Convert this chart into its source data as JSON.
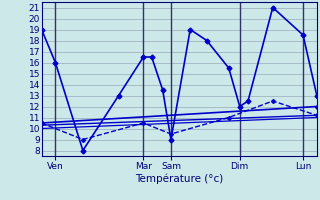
{
  "xlabel": "Température (°c)",
  "background_color": "#cce8e8",
  "grid_color": "#99aabb",
  "line_color": "#0000cc",
  "dark_line_color": "#000088",
  "yticks": [
    8,
    9,
    10,
    11,
    12,
    13,
    14,
    15,
    16,
    17,
    18,
    19,
    20,
    21
  ],
  "ylim": [
    7.5,
    21.5
  ],
  "xlim": [
    0,
    100
  ],
  "xtick_positions": [
    5,
    37,
    47,
    72,
    95
  ],
  "xtick_labels": [
    "Ven",
    "Mar",
    "Sam",
    "Dim",
    "Lun"
  ],
  "series": [
    {
      "x": [
        0,
        5,
        15,
        28,
        37,
        40,
        44,
        47,
        54,
        60,
        68,
        72,
        75,
        84,
        95,
        100
      ],
      "y": [
        19,
        16,
        8,
        13,
        16.5,
        16.5,
        13.5,
        9,
        19,
        18,
        15.5,
        12,
        12.5,
        21,
        18.5,
        13
      ],
      "lw": 1.2,
      "ls": "-",
      "marker": "D",
      "ms": 2.5
    },
    {
      "x": [
        0,
        100
      ],
      "y": [
        10.5,
        12
      ],
      "lw": 1.2,
      "ls": "-",
      "marker": "D",
      "ms": 2.0
    },
    {
      "x": [
        0,
        100
      ],
      "y": [
        10.3,
        11.2
      ],
      "lw": 1.0,
      "ls": "-",
      "marker": null,
      "ms": 0
    },
    {
      "x": [
        0,
        100
      ],
      "y": [
        10.0,
        11.0
      ],
      "lw": 0.9,
      "ls": "-",
      "marker": null,
      "ms": 0
    },
    {
      "x": [
        0,
        15,
        37,
        47,
        68,
        84,
        100
      ],
      "y": [
        10.5,
        9,
        10.5,
        9.5,
        11,
        12.5,
        11.2
      ],
      "lw": 1.0,
      "ls": "--",
      "marker": "D",
      "ms": 2.0
    }
  ]
}
